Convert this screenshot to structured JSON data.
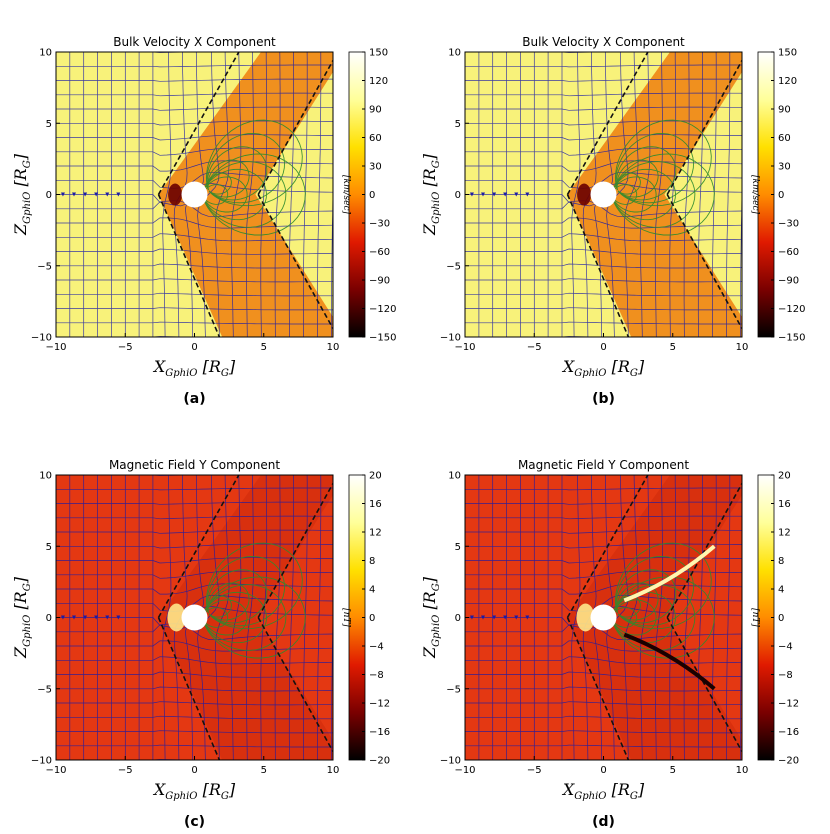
{
  "chart_data": [
    {
      "type": "heatmap",
      "panel_label": "(a)",
      "title": "Bulk Velocity X Component",
      "xlabel": "X_{GphiO} [R_G]",
      "ylabel": "Z_{GphiO} [R_G]",
      "xlim": [
        -10,
        10
      ],
      "ylim": [
        -10,
        10
      ],
      "x_ticks": [
        "−10",
        "−5",
        "0",
        "5",
        "10"
      ],
      "y_ticks": [
        "10",
        "5",
        "0",
        "−5",
        "−10"
      ],
      "colorbar": {
        "label": "[km/sec]",
        "range": [
          -150,
          150
        ],
        "ticks": [
          "150",
          "120",
          "90",
          "60",
          "30",
          "0",
          "−30",
          "−60",
          "−90",
          "−120",
          "−150"
        ],
        "colormap": "hot"
      },
      "overlays": [
        "blue field lines",
        "green flow lines",
        "dashed magnetopause boundary"
      ]
    },
    {
      "type": "heatmap",
      "panel_label": "(b)",
      "title": "Bulk Velocity X Component",
      "xlabel": "X_{GphiO} [R_G]",
      "ylabel": "Z_{GphiO} [R_G]",
      "xlim": [
        -10,
        10
      ],
      "ylim": [
        -10,
        10
      ],
      "x_ticks": [
        "−10",
        "−5",
        "0",
        "5",
        "10"
      ],
      "y_ticks": [
        "10",
        "5",
        "0",
        "−5",
        "−10"
      ],
      "colorbar": {
        "label": "[km/sec]",
        "range": [
          -150,
          150
        ],
        "ticks": [
          "150",
          "120",
          "90",
          "60",
          "30",
          "0",
          "−30",
          "−60",
          "−90",
          "−120",
          "−150"
        ],
        "colormap": "hot"
      },
      "overlays": [
        "blue field lines",
        "green flow lines",
        "dashed magnetopause boundary"
      ]
    },
    {
      "type": "heatmap",
      "panel_label": "(c)",
      "title": "Magnetic Field Y Component",
      "xlabel": "X_{GphiO} [R_G]",
      "ylabel": "Z_{GphiO} [R_G]",
      "xlim": [
        -10,
        10
      ],
      "ylim": [
        -10,
        10
      ],
      "x_ticks": [
        "−10",
        "−5",
        "0",
        "5",
        "10"
      ],
      "y_ticks": [
        "10",
        "5",
        "0",
        "−5",
        "−10"
      ],
      "colorbar": {
        "label": "[nT]",
        "range": [
          -20,
          20
        ],
        "ticks": [
          "20",
          "16",
          "12",
          "8",
          "4",
          "0",
          "−4",
          "−8",
          "−12",
          "−16",
          "−20"
        ],
        "colormap": "hot"
      },
      "overlays": [
        "blue field lines",
        "green flow lines",
        "dashed magnetopause boundary"
      ]
    },
    {
      "type": "heatmap",
      "panel_label": "(d)",
      "title": "Magnetic Field Y Component",
      "xlabel": "X_{GphiO} [R_G]",
      "ylabel": "Z_{GphiO} [R_G]",
      "xlim": [
        -10,
        10
      ],
      "ylim": [
        -10,
        10
      ],
      "x_ticks": [
        "−10",
        "−5",
        "0",
        "5",
        "10"
      ],
      "y_ticks": [
        "10",
        "5",
        "0",
        "−5",
        "−10"
      ],
      "colorbar": {
        "label": "[nT]",
        "range": [
          -20,
          20
        ],
        "ticks": [
          "20",
          "16",
          "12",
          "8",
          "4",
          "0",
          "−4",
          "−8",
          "−12",
          "−16",
          "−20"
        ],
        "colormap": "hot"
      },
      "overlays": [
        "blue field lines",
        "green flow lines",
        "dashed magnetopause boundary"
      ]
    }
  ],
  "colors": {
    "hot_stops": [
      "#000000",
      "#7a0000",
      "#e01a00",
      "#ff8c00",
      "#ffe000",
      "#ffff9a",
      "#ffffff"
    ],
    "blue_line": "#1a1aa8",
    "green_line": "#2e8a2e",
    "boundary": "#111111"
  }
}
